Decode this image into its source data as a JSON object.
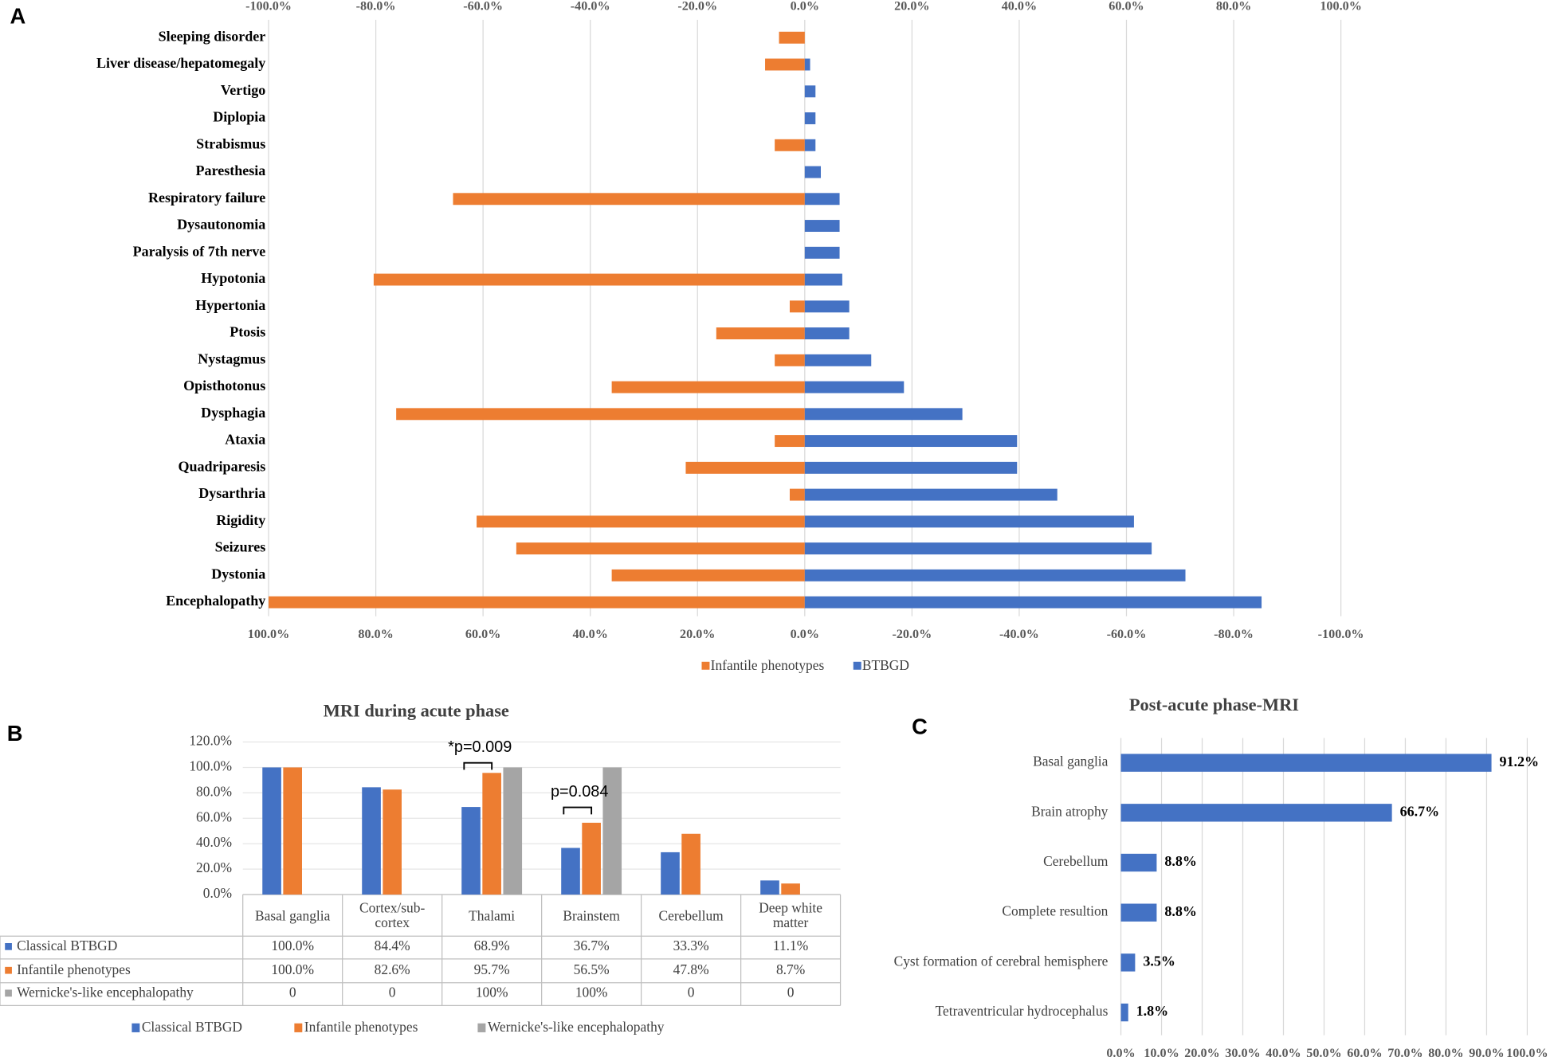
{
  "chart_data": [
    {
      "type": "butterfly",
      "panel_label": "A",
      "categories": [
        "Sleeping disorder",
        "Liver disease/hepatomegaly",
        "Vertigo",
        "Diplopia",
        "Strabismus",
        "Paresthesia",
        "Respiratory failure",
        "Dysautonomia",
        "Paralysis of 7th nerve",
        "Hypotonia",
        "Hypertonia",
        "Ptosis",
        "Nystagmus",
        "Opisthotonus",
        "Dysphagia",
        "Ataxia",
        "Quadriparesis",
        "Dysarthria",
        "Rigidity",
        "Seizures",
        "Dystonia",
        "Encephalopathy"
      ],
      "series": [
        {
          "name": "Infantile phenotypes",
          "color": "#ed7d31",
          "values": [
            -4.8,
            -7.4,
            0,
            0,
            -5.6,
            0,
            -65.6,
            0,
            0,
            -80.4,
            -2.8,
            -16.5,
            -5.6,
            -36,
            -76.2,
            -5.6,
            -22.2,
            -2.8,
            -61.2,
            -53.8,
            -36,
            -100
          ]
        },
        {
          "name": "BTBGD",
          "color": "#4472c4",
          "values": [
            0,
            1,
            2,
            2,
            2,
            3,
            6.5,
            6.5,
            6.5,
            7,
            8.3,
            8.3,
            12.4,
            18.5,
            29.4,
            39.6,
            39.6,
            47.1,
            61.4,
            64.7,
            71,
            85.2
          ]
        }
      ],
      "xlim": [
        -100,
        100
      ],
      "xticks": [
        {
          "value": -100,
          "label": "-100.0%"
        },
        {
          "value": -80,
          "label": "-80.0%"
        },
        {
          "value": -60,
          "label": "-60.0%"
        },
        {
          "value": -40,
          "label": "-40.0%"
        },
        {
          "value": -20,
          "label": "-20.0%"
        },
        {
          "value": 0,
          "label": "0.0%"
        },
        {
          "value": 20,
          "label": "20.0%"
        },
        {
          "value": 40,
          "label": "40.0%"
        },
        {
          "value": 60,
          "label": "60.0%"
        },
        {
          "value": 80,
          "label": "80.0%"
        },
        {
          "value": 100,
          "label": "100.0%"
        }
      ],
      "xticks_bottom": [
        {
          "value": -100,
          "label": "100.0%"
        },
        {
          "value": -80,
          "label": "80.0%"
        },
        {
          "value": -60,
          "label": "60.0%"
        },
        {
          "value": -40,
          "label": "40.0%"
        },
        {
          "value": -20,
          "label": "20.0%"
        },
        {
          "value": 0,
          "label": "0.0%"
        },
        {
          "value": 20,
          "label": "-20.0%"
        },
        {
          "value": 40,
          "label": "-40.0%"
        },
        {
          "value": 60,
          "label": "-60.0%"
        },
        {
          "value": 80,
          "label": "-80.0%"
        },
        {
          "value": 100,
          "label": "-100.0%"
        }
      ],
      "grid": true,
      "legend": "bottom"
    },
    {
      "type": "grouped_bar_table",
      "panel_label": "B",
      "title": "MRI during  acute phase",
      "categories": [
        "Basal ganglia",
        "Cortex/sub-cortex",
        "Thalami",
        "Brainstem",
        "Cerebellum",
        "Deep white matter"
      ],
      "series": [
        {
          "name": "Classical BTBGD",
          "color": "#4472c4",
          "values": [
            100,
            84.4,
            68.9,
            36.7,
            33.3,
            11.1
          ],
          "value_labels": [
            "100.0%",
            "84.4%",
            "68.9%",
            "36.7%",
            "33.3%",
            "11.1%"
          ]
        },
        {
          "name": "Infantile phenotypes",
          "color": "#ed7d31",
          "values": [
            100,
            82.6,
            95.7,
            56.5,
            47.8,
            8.7
          ],
          "value_labels": [
            "100.0%",
            "82.6%",
            "95.7%",
            "56.5%",
            "47.8%",
            "8.7%"
          ]
        },
        {
          "name": "Wernicke's-like encephalopathy",
          "color": "#a5a5a5",
          "values": [
            0,
            0,
            100,
            100,
            0,
            0
          ],
          "value_labels": [
            "0",
            "0",
            "100%",
            "100%",
            "0",
            "0"
          ]
        }
      ],
      "ylim": [
        0,
        120
      ],
      "yticks": [
        {
          "value": 0,
          "label": "0.0%"
        },
        {
          "value": 20,
          "label": "20.0%"
        },
        {
          "value": 40,
          "label": "40.0%"
        },
        {
          "value": 60,
          "label": "60.0%"
        },
        {
          "value": 80,
          "label": "80.0%"
        },
        {
          "value": 100,
          "label": "100.0%"
        },
        {
          "value": 120,
          "label": "120.0%"
        }
      ],
      "annotations": [
        {
          "text": "*p=0.009",
          "category": 2
        },
        {
          "text": "p=0.084",
          "category": 3
        }
      ],
      "legend": "bottom"
    },
    {
      "type": "hbar",
      "panel_label": "C",
      "title": "Post-acute phase-MRI",
      "categories": [
        "Basal ganglia",
        "Brain atrophy",
        "Cerebellum",
        "Complete resultion",
        "Cyst formation of cerebral hemisphere",
        "Tetraventricular hydrocephalus"
      ],
      "values": [
        91.2,
        66.7,
        8.8,
        8.8,
        3.5,
        1.8
      ],
      "value_labels": [
        "91.2%",
        "66.7%",
        "8.8%",
        "8.8%",
        "3.5%",
        "1.8%"
      ],
      "color": "#4472c4",
      "xlim": [
        0,
        100
      ],
      "xticks": [
        {
          "value": 0,
          "label": "0.0%"
        },
        {
          "value": 10,
          "label": "10.0%"
        },
        {
          "value": 20,
          "label": "20.0%"
        },
        {
          "value": 30,
          "label": "30.0%"
        },
        {
          "value": 40,
          "label": "40.0%"
        },
        {
          "value": 50,
          "label": "50.0%"
        },
        {
          "value": 60,
          "label": "60.0%"
        },
        {
          "value": 70,
          "label": "70.0%"
        },
        {
          "value": 80,
          "label": "80.0%"
        },
        {
          "value": 90,
          "label": "90.0%"
        },
        {
          "value": 100,
          "label": "100.0%"
        }
      ],
      "grid": true
    }
  ]
}
